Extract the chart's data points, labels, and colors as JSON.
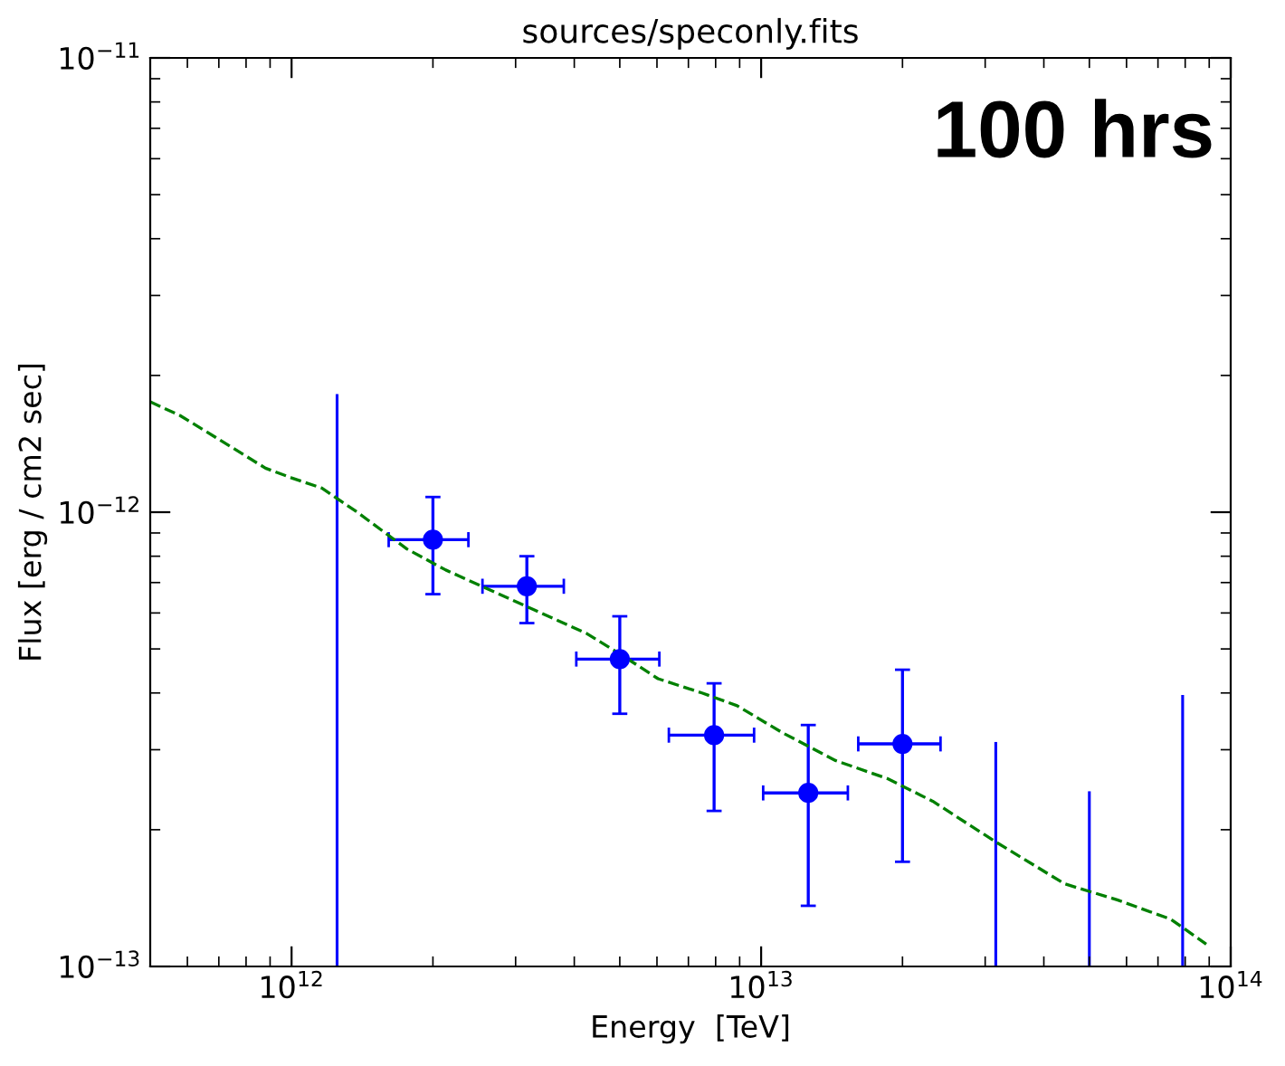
{
  "chart_data": {
    "type": "scatter",
    "title": "sources/speconly.fits",
    "xlabel": "Energy  [TeV]",
    "ylabel": "Flux [erg / cm2 sec]",
    "log": "xy",
    "xlim": [
      500000000000.0,
      100000000000000.0
    ],
    "ylim": [
      1e-13,
      1e-11
    ],
    "xticks": [
      {
        "value": 1000000000000.0,
        "label": "10$^{12}$"
      },
      {
        "value": 10000000000000.0,
        "label": "10$^{13}$"
      },
      {
        "value": 100000000000000.0,
        "label": "10$^{14}$"
      }
    ],
    "yticks": [
      {
        "value": 1e-13,
        "label": "10$^{−13}$"
      },
      {
        "value": 1e-12,
        "label": "10$^{−12}$"
      },
      {
        "value": 1e-11,
        "label": "10$^{−11}$"
      }
    ],
    "grid": false,
    "annotations": [
      "100 hrs"
    ],
    "series": [
      {
        "marker": "circle",
        "color": "#0000ff",
        "x": [
          2000000000000.0,
          3170000000000.0,
          5000000000000.0,
          7940000000000.0,
          12600000000000.0,
          20000000000000.0
        ],
        "values": [
          8.7e-13,
          6.87e-13,
          4.75e-13,
          3.23e-13,
          2.41e-13,
          3.09e-13
        ],
        "errors": [
          [
            6.6e-13,
            1.08e-12
          ],
          [
            5.7e-13,
            8e-13
          ],
          [
            3.6e-13,
            5.9e-13
          ],
          [
            2.2e-13,
            4.2e-13
          ],
          [
            1.36e-13,
            3.4e-13
          ],
          [
            1.7e-13,
            4.5e-13
          ]
        ],
        "xerrors": [
          [
            1610000000000.0,
            2380000000000.0
          ],
          [
            2550000000000.0,
            3800000000000.0
          ],
          [
            4040000000000.0,
            6070000000000.0
          ],
          [
            6360000000000.0,
            9660000000000.0
          ],
          [
            10100000000000.0,
            15300000000000.0
          ],
          [
            16100000000000.0,
            24100000000000.0
          ]
        ]
      },
      {
        "type": "bar",
        "color": "#0000ff",
        "x": [
          1250000000000.0,
          31600000000000.0,
          50000000000000.0,
          79000000000000.0
        ],
        "base": [
          1e-13,
          1e-13,
          1e-13,
          1e-13
        ],
        "values": [
          1.72e-12,
          2.12e-13,
          1.43e-13,
          2.96e-13
        ]
      },
      {
        "type": "line",
        "line_style": "dashed",
        "color": "#008000",
        "x": [
          500000000000.0,
          580000000000.0,
          690000000000.0,
          880000000000.0,
          1000000000000.0,
          1160000000000.0,
          1380000000000.0,
          1760000000000.0,
          2130000000000.0,
          2640000000000.0,
          3280000000000.0,
          4260000000000.0,
          5060000000000.0,
          6030000000000.0,
          7480000000000.0,
          8890000000000.0,
          11100000000000.0,
          14400000000000.0,
          18600000000000.0,
          23200000000000.0,
          31600000000000.0,
          44300000000000.0,
          57500000000000.0,
          74600000000000.0,
          88700000000000.0
        ],
        "values": [
          1.75e-12,
          1.63e-12,
          1.46e-12,
          1.25e-12,
          1.19e-12,
          1.13e-12,
          1e-12,
          8.3e-13,
          7.46e-13,
          6.75e-13,
          6.1e-13,
          5.4e-13,
          4.84e-13,
          4.3e-13,
          4e-13,
          3.75e-13,
          3.27e-13,
          2.84e-13,
          2.59e-13,
          2.31e-13,
          1.88e-13,
          1.52e-13,
          1.4e-13,
          1.27e-13,
          1.12e-13
        ]
      }
    ]
  }
}
